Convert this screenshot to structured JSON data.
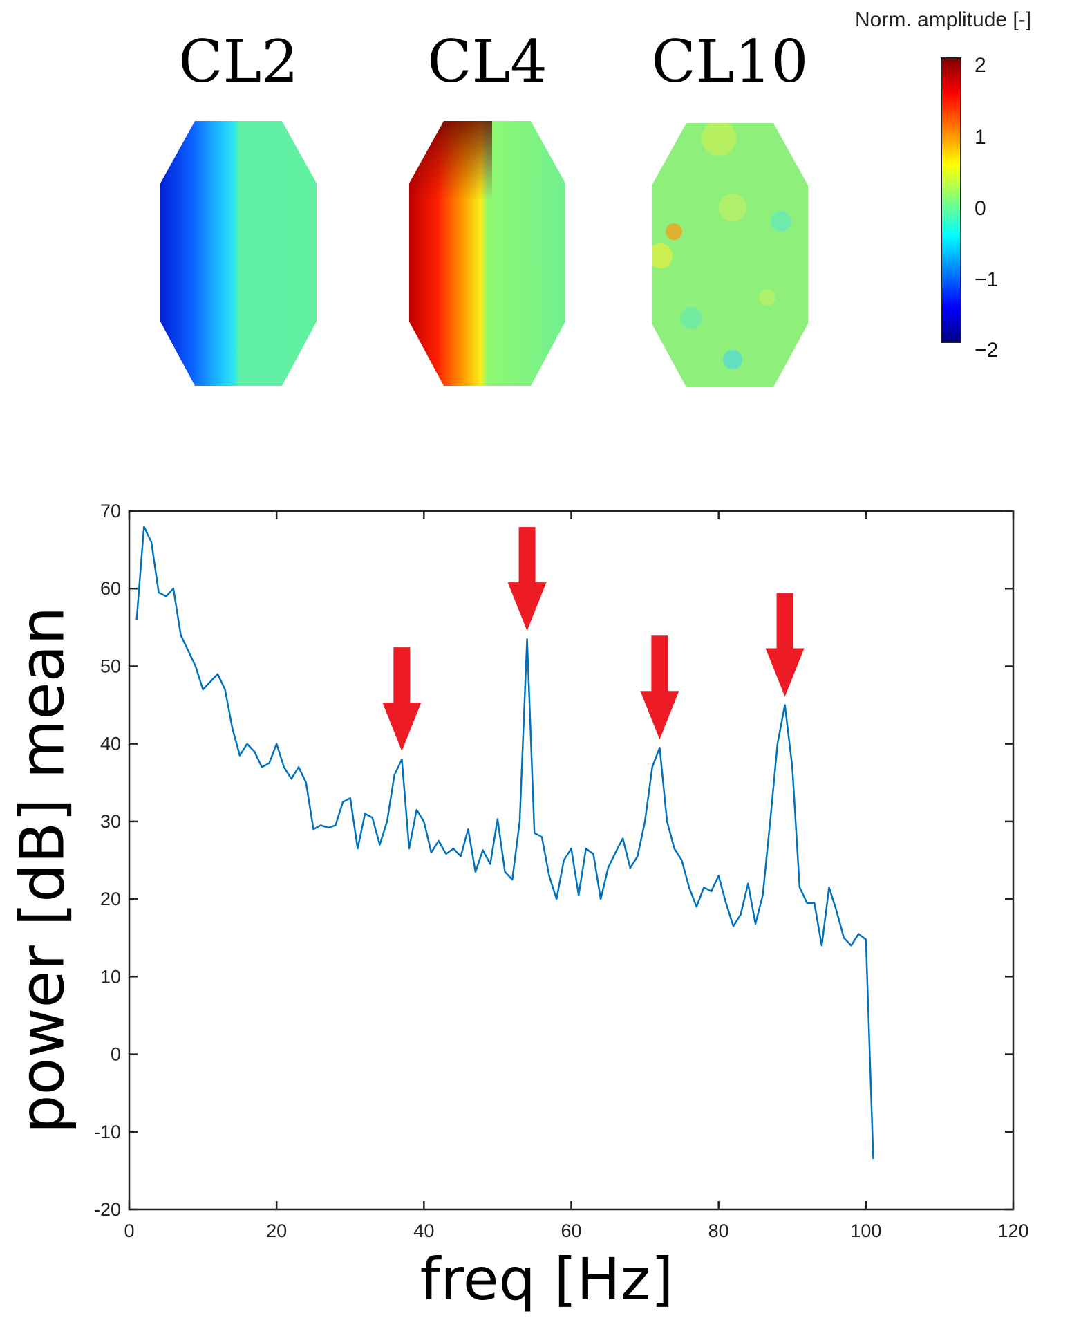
{
  "heatmaps": {
    "titles": [
      "CL2",
      "CL4",
      "CL10"
    ],
    "colorbar": {
      "label": "Norm. amplitude [-]",
      "ticks": [
        "2",
        "1",
        "0",
        "−1",
        "−2"
      ],
      "range": [
        -2,
        2
      ],
      "colormap": "jet"
    }
  },
  "chart_data": {
    "type": "line",
    "title": "",
    "xlabel": "freq [Hz]",
    "ylabel": "power [dB] mean",
    "xlim": [
      0,
      120
    ],
    "ylim": [
      -20,
      70
    ],
    "xticks": [
      "0",
      "20",
      "40",
      "60",
      "80",
      "100",
      "120"
    ],
    "yticks": [
      "70",
      "60",
      "50",
      "40",
      "30",
      "20",
      "10",
      "0",
      "-10",
      "-20"
    ],
    "grid": false,
    "line_color": "#0072BD",
    "arrow_color": "#ED1C24",
    "arrows_at_x": [
      37,
      54,
      72,
      89
    ],
    "series": [
      {
        "name": "power",
        "x": [
          1,
          2,
          3,
          4,
          5,
          6,
          7,
          8,
          9,
          10,
          11,
          12,
          13,
          14,
          15,
          16,
          17,
          18,
          19,
          20,
          21,
          22,
          23,
          24,
          25,
          26,
          27,
          28,
          29,
          30,
          31,
          32,
          33,
          34,
          35,
          36,
          37,
          38,
          39,
          40,
          41,
          42,
          43,
          44,
          45,
          46,
          47,
          48,
          49,
          50,
          51,
          52,
          53,
          54,
          55,
          56,
          57,
          58,
          59,
          60,
          61,
          62,
          63,
          64,
          65,
          66,
          67,
          68,
          69,
          70,
          71,
          72,
          73,
          74,
          75,
          76,
          77,
          78,
          79,
          80,
          81,
          82,
          83,
          84,
          85,
          86,
          87,
          88,
          89,
          90,
          91,
          92,
          93,
          94,
          95,
          96,
          97,
          98,
          99,
          100,
          101
        ],
        "values": [
          56,
          68,
          66,
          59.5,
          59,
          60,
          54,
          52,
          50,
          47,
          48,
          49,
          47,
          42,
          38.5,
          40,
          39,
          37,
          37.5,
          40,
          37,
          35.5,
          37,
          35,
          29,
          29.5,
          29.2,
          29.5,
          32.5,
          33,
          26.5,
          31,
          30.5,
          27,
          30,
          36,
          38,
          26.5,
          31.5,
          30,
          26,
          27.5,
          25.8,
          26.5,
          25.5,
          29,
          23.5,
          26.3,
          24.5,
          30.3,
          23.5,
          22.5,
          30,
          53.5,
          28.5,
          28,
          23,
          20,
          25,
          26.5,
          20.5,
          26.5,
          25.8,
          20,
          24,
          26,
          27.8,
          24,
          25.5,
          30,
          37,
          39.5,
          30,
          26.5,
          25,
          21.5,
          19,
          21.5,
          21,
          23,
          19.5,
          16.5,
          18,
          22,
          16.8,
          20.5,
          30,
          40,
          45,
          37,
          21.5,
          19.5,
          19.5,
          14,
          21.5,
          18.5,
          15,
          14,
          15.5,
          14.8,
          -13.5
        ]
      }
    ]
  }
}
